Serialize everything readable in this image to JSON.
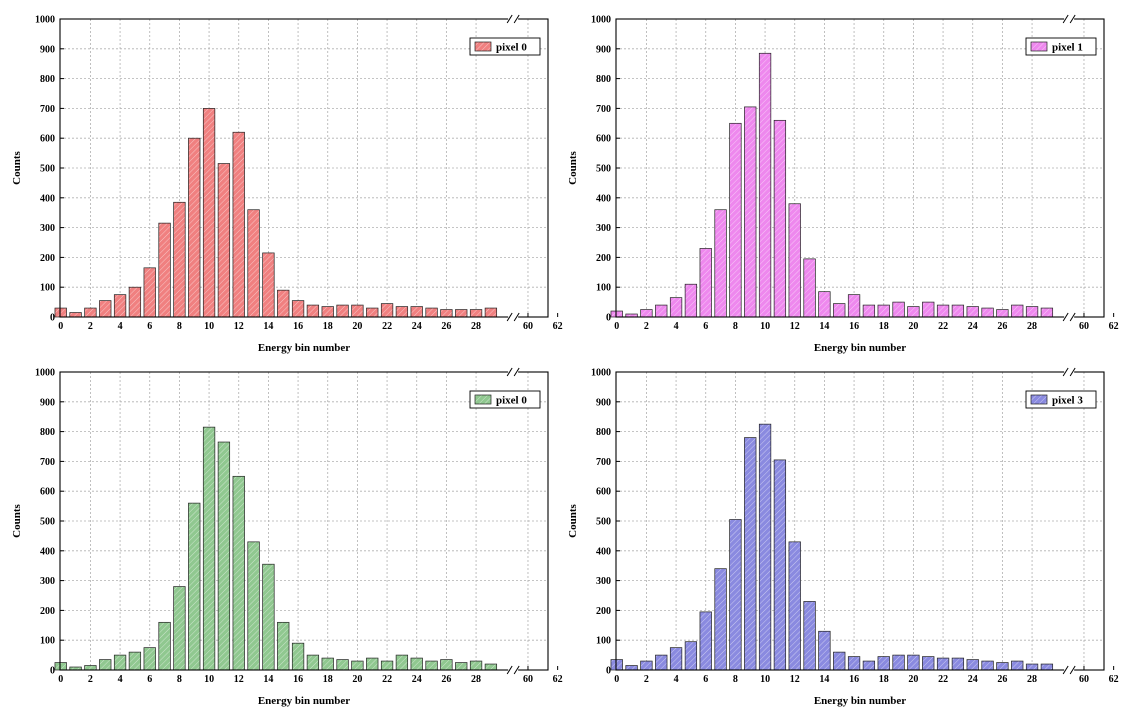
{
  "chart_data": [
    {
      "type": "bar",
      "xlabel": "Energy bin number",
      "ylabel": "Counts",
      "ylim": [
        0,
        1000
      ],
      "yticks": [
        "0",
        "100",
        "200",
        "300",
        "400",
        "500",
        "600",
        "700",
        "800",
        "900",
        "1000"
      ],
      "xticks": [
        "0",
        "2",
        "4",
        "6",
        "8",
        "10",
        "12",
        "14",
        "16",
        "18",
        "20",
        "22",
        "24",
        "26",
        "28",
        "60",
        "62"
      ],
      "legend": "top-right",
      "grid": true,
      "series": [
        {
          "name": "pixel 0",
          "color": "#f08080",
          "x": [
            0,
            1,
            2,
            3,
            4,
            5,
            6,
            7,
            8,
            9,
            10,
            11,
            12,
            13,
            14,
            15,
            16,
            17,
            18,
            19,
            20,
            21,
            22,
            23,
            24,
            25,
            26,
            27,
            28,
            29
          ],
          "values": [
            30,
            15,
            30,
            55,
            75,
            100,
            165,
            315,
            385,
            600,
            700,
            515,
            620,
            360,
            215,
            90,
            55,
            40,
            35,
            40,
            40,
            30,
            45,
            35,
            35,
            30,
            25,
            25,
            25,
            30
          ]
        }
      ]
    },
    {
      "type": "bar",
      "xlabel": "Energy bin number",
      "ylabel": "Counts",
      "ylim": [
        0,
        1000
      ],
      "yticks": [
        "0",
        "100",
        "200",
        "300",
        "400",
        "500",
        "600",
        "700",
        "800",
        "900",
        "1000"
      ],
      "xticks": [
        "0",
        "2",
        "4",
        "6",
        "8",
        "10",
        "12",
        "14",
        "16",
        "18",
        "20",
        "22",
        "24",
        "26",
        "28",
        "60",
        "62"
      ],
      "legend": "top-right",
      "grid": true,
      "series": [
        {
          "name": "pixel 1",
          "color": "#ee88ee",
          "x": [
            0,
            1,
            2,
            3,
            4,
            5,
            6,
            7,
            8,
            9,
            10,
            11,
            12,
            13,
            14,
            15,
            16,
            17,
            18,
            19,
            20,
            21,
            22,
            23,
            24,
            25,
            26,
            27,
            28,
            29
          ],
          "values": [
            20,
            10,
            25,
            40,
            65,
            110,
            230,
            360,
            650,
            705,
            885,
            660,
            380,
            195,
            85,
            45,
            75,
            40,
            40,
            50,
            35,
            50,
            40,
            40,
            35,
            30,
            25,
            40,
            35,
            30
          ]
        }
      ]
    },
    {
      "type": "bar",
      "xlabel": "Energy bin number",
      "ylabel": "Counts",
      "ylim": [
        0,
        1000
      ],
      "yticks": [
        "0",
        "100",
        "200",
        "300",
        "400",
        "500",
        "600",
        "700",
        "800",
        "900",
        "1000"
      ],
      "xticks": [
        "0",
        "2",
        "4",
        "6",
        "8",
        "10",
        "12",
        "14",
        "16",
        "18",
        "20",
        "22",
        "24",
        "26",
        "28",
        "60",
        "62"
      ],
      "legend": "top-right",
      "grid": true,
      "series": [
        {
          "name": "pixel 0",
          "color": "#90c890",
          "x": [
            0,
            1,
            2,
            3,
            4,
            5,
            6,
            7,
            8,
            9,
            10,
            11,
            12,
            13,
            14,
            15,
            16,
            17,
            18,
            19,
            20,
            21,
            22,
            23,
            24,
            25,
            26,
            27,
            28,
            29
          ],
          "values": [
            25,
            10,
            15,
            35,
            50,
            60,
            75,
            160,
            280,
            560,
            815,
            765,
            650,
            430,
            355,
            160,
            90,
            50,
            40,
            35,
            30,
            40,
            30,
            50,
            40,
            30,
            35,
            25,
            30,
            20
          ]
        }
      ]
    },
    {
      "type": "bar",
      "xlabel": "Energy bin number",
      "ylabel": "Counts",
      "ylim": [
        0,
        1000
      ],
      "yticks": [
        "0",
        "100",
        "200",
        "300",
        "400",
        "500",
        "600",
        "700",
        "800",
        "900",
        "1000"
      ],
      "xticks": [
        "0",
        "2",
        "4",
        "6",
        "8",
        "10",
        "12",
        "14",
        "16",
        "18",
        "20",
        "22",
        "24",
        "26",
        "28",
        "60",
        "62"
      ],
      "legend": "top-right",
      "grid": true,
      "series": [
        {
          "name": "pixel 3",
          "color": "#8a8ae0",
          "x": [
            0,
            1,
            2,
            3,
            4,
            5,
            6,
            7,
            8,
            9,
            10,
            11,
            12,
            13,
            14,
            15,
            16,
            17,
            18,
            19,
            20,
            21,
            22,
            23,
            24,
            25,
            26,
            27,
            28,
            29
          ],
          "values": [
            35,
            15,
            30,
            50,
            75,
            95,
            195,
            340,
            505,
            780,
            825,
            705,
            430,
            230,
            130,
            60,
            45,
            30,
            45,
            50,
            50,
            45,
            40,
            40,
            35,
            30,
            25,
            30,
            20,
            20
          ]
        }
      ]
    }
  ]
}
